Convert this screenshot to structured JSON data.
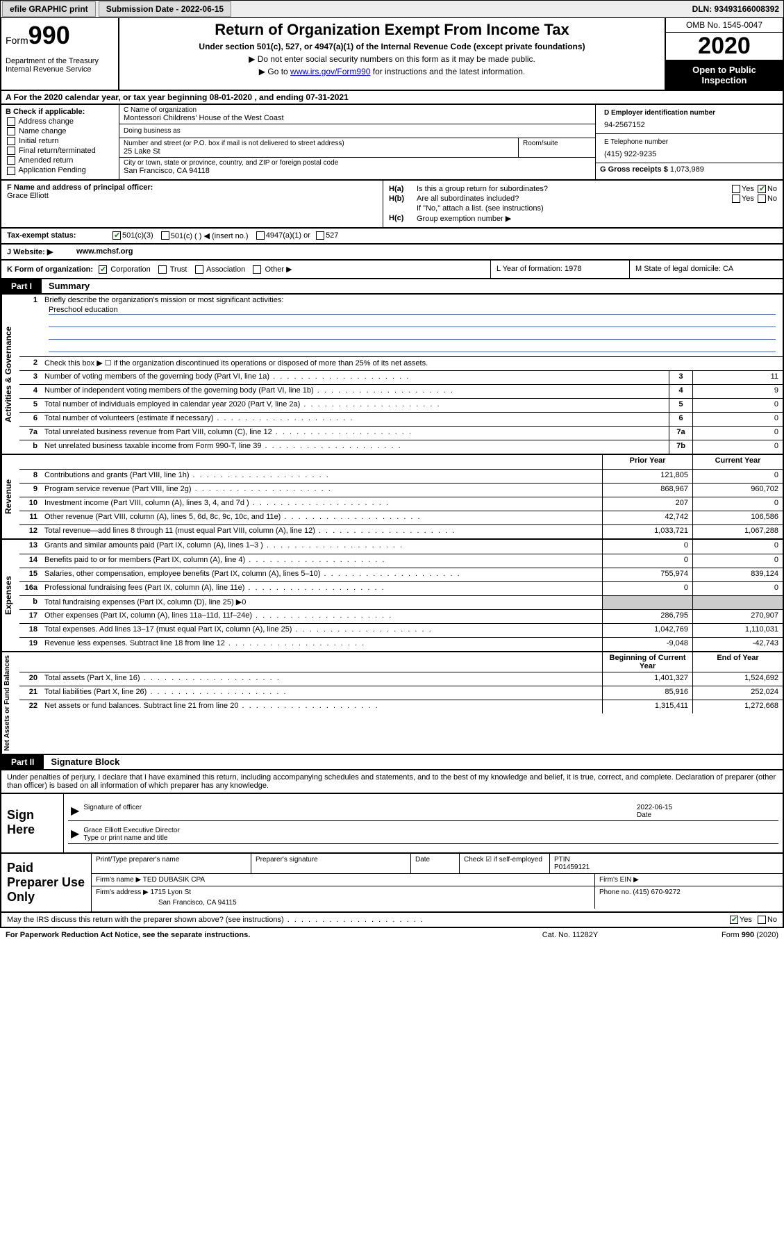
{
  "topbar": {
    "efile": "efile GRAPHIC print",
    "submission_label": "Submission Date - 2022-06-15",
    "dln": "DLN: 93493166008392"
  },
  "header": {
    "form_word": "Form",
    "form_num": "990",
    "dept": "Department of the Treasury",
    "irs": "Internal Revenue Service",
    "title": "Return of Organization Exempt From Income Tax",
    "subtitle": "Under section 501(c), 527, or 4947(a)(1) of the Internal Revenue Code (except private foundations)",
    "line1": "▶ Do not enter social security numbers on this form as it may be made public.",
    "line2_pre": "▶ Go to ",
    "line2_link": "www.irs.gov/Form990",
    "line2_post": " for instructions and the latest information.",
    "omb": "OMB No. 1545-0047",
    "year": "2020",
    "open": "Open to Public Inspection"
  },
  "rowA": "A   For the 2020 calendar year, or tax year beginning 08-01-2020   , and ending 07-31-2021",
  "B": {
    "hdr": "B Check if applicable:",
    "items": [
      "Address change",
      "Name change",
      "Initial return",
      "Final return/terminated",
      "Amended return",
      "Application Pending"
    ]
  },
  "C": {
    "name_lbl": "C Name of organization",
    "name": "Montessori Childrens' House of the West Coast",
    "dba_lbl": "Doing business as",
    "street_lbl": "Number and street (or P.O. box if mail is not delivered to street address)",
    "street": "25 Lake St",
    "room_lbl": "Room/suite",
    "city_lbl": "City or town, state or province, country, and ZIP or foreign postal code",
    "city": "San Francisco, CA  94118"
  },
  "D": {
    "ein_lbl": "D Employer identification number",
    "ein": "94-2567152",
    "phone_lbl": "E Telephone number",
    "phone": "(415) 922-9235",
    "gross_lbl": "G Gross receipts $ ",
    "gross": "1,073,989"
  },
  "F": {
    "lbl": "F  Name and address of principal officer:",
    "name": "Grace Elliott"
  },
  "H": {
    "a": "Is this a group return for subordinates?",
    "b": "Are all subordinates included?",
    "b_note": "If \"No,\" attach a list. (see instructions)",
    "c": "Group exemption number ▶"
  },
  "tax": {
    "lbl": "Tax-exempt status:",
    "opts": [
      "501(c)(3)",
      "501(c) (  ) ◀ (insert no.)",
      "4947(a)(1) or",
      "527"
    ]
  },
  "J": {
    "lbl": "J   Website: ▶",
    "val": "www.mchsf.org"
  },
  "K": {
    "lbl": "K Form of organization:",
    "opts": [
      "Corporation",
      "Trust",
      "Association",
      "Other ▶"
    ]
  },
  "L": "L Year of formation: 1978",
  "M": "M State of legal domicile: CA",
  "partI": {
    "tab": "Part I",
    "title": "Summary"
  },
  "summary": {
    "side1": "Activities & Governance",
    "side2": "Revenue",
    "side3": "Expenses",
    "side4": "Net Assets or Fund Balances",
    "q1": "Briefly describe the organization's mission or most significant activities:",
    "mission": "Preschool education",
    "q2": "Check this box ▶ ☐  if the organization discontinued its operations or disposed of more than 25% of its net assets.",
    "rows_gov": [
      {
        "n": "3",
        "t": "Number of voting members of the governing body (Part VI, line 1a)",
        "box": "3",
        "v": "11"
      },
      {
        "n": "4",
        "t": "Number of independent voting members of the governing body (Part VI, line 1b)",
        "box": "4",
        "v": "9"
      },
      {
        "n": "5",
        "t": "Total number of individuals employed in calendar year 2020 (Part V, line 2a)",
        "box": "5",
        "v": "0"
      },
      {
        "n": "6",
        "t": "Total number of volunteers (estimate if necessary)",
        "box": "6",
        "v": "0"
      },
      {
        "n": "7a",
        "t": "Total unrelated business revenue from Part VIII, column (C), line 12",
        "box": "7a",
        "v": "0"
      },
      {
        "n": "b",
        "t": "Net unrelated business taxable income from Form 990-T, line 39",
        "box": "7b",
        "v": "0"
      }
    ],
    "col_prior": "Prior Year",
    "col_curr": "Current Year",
    "rows_rev": [
      {
        "n": "8",
        "t": "Contributions and grants (Part VIII, line 1h)",
        "p": "121,805",
        "c": "0"
      },
      {
        "n": "9",
        "t": "Program service revenue (Part VIII, line 2g)",
        "p": "868,967",
        "c": "960,702"
      },
      {
        "n": "10",
        "t": "Investment income (Part VIII, column (A), lines 3, 4, and 7d )",
        "p": "207",
        "c": "0"
      },
      {
        "n": "11",
        "t": "Other revenue (Part VIII, column (A), lines 5, 6d, 8c, 9c, 10c, and 11e)",
        "p": "42,742",
        "c": "106,586"
      },
      {
        "n": "12",
        "t": "Total revenue—add lines 8 through 11 (must equal Part VIII, column (A), line 12)",
        "p": "1,033,721",
        "c": "1,067,288"
      }
    ],
    "rows_exp": [
      {
        "n": "13",
        "t": "Grants and similar amounts paid (Part IX, column (A), lines 1–3 )",
        "p": "0",
        "c": "0"
      },
      {
        "n": "14",
        "t": "Benefits paid to or for members (Part IX, column (A), line 4)",
        "p": "0",
        "c": "0"
      },
      {
        "n": "15",
        "t": "Salaries, other compensation, employee benefits (Part IX, column (A), lines 5–10)",
        "p": "755,974",
        "c": "839,124"
      },
      {
        "n": "16a",
        "t": "Professional fundraising fees (Part IX, column (A), line 11e)",
        "p": "0",
        "c": "0"
      },
      {
        "n": "b",
        "t": "Total fundraising expenses (Part IX, column (D), line 25) ▶0",
        "p": "",
        "c": "",
        "shade": true
      },
      {
        "n": "17",
        "t": "Other expenses (Part IX, column (A), lines 11a–11d, 11f–24e)",
        "p": "286,795",
        "c": "270,907"
      },
      {
        "n": "18",
        "t": "Total expenses. Add lines 13–17 (must equal Part IX, column (A), line 25)",
        "p": "1,042,769",
        "c": "1,110,031"
      },
      {
        "n": "19",
        "t": "Revenue less expenses. Subtract line 18 from line 12",
        "p": "-9,048",
        "c": "-42,743"
      }
    ],
    "col_begin": "Beginning of Current Year",
    "col_end": "End of Year",
    "rows_net": [
      {
        "n": "20",
        "t": "Total assets (Part X, line 16)",
        "p": "1,401,327",
        "c": "1,524,692"
      },
      {
        "n": "21",
        "t": "Total liabilities (Part X, line 26)",
        "p": "85,916",
        "c": "252,024"
      },
      {
        "n": "22",
        "t": "Net assets or fund balances. Subtract line 21 from line 20",
        "p": "1,315,411",
        "c": "1,272,668"
      }
    ]
  },
  "partII": {
    "tab": "Part II",
    "title": "Signature Block"
  },
  "perjury": "Under penalties of perjury, I declare that I have examined this return, including accompanying schedules and statements, and to the best of my knowledge and belief, it is true, correct, and complete. Declaration of preparer (other than officer) is based on all information of which preparer has any knowledge.",
  "sign": {
    "left": "Sign Here",
    "sig_lbl": "Signature of officer",
    "date_lbl": "Date",
    "date": "2022-06-15",
    "name": "Grace Elliott  Executive Director",
    "name_lbl": "Type or print name and title"
  },
  "paid": {
    "left": "Paid Preparer Use Only",
    "r1": [
      "Print/Type preparer's name",
      "Preparer's signature",
      "Date",
      "Check ☑ if self-employed",
      "PTIN\nP01459121"
    ],
    "r2_lbl": "Firm's name   ▶",
    "r2_val": "TED DUBASIK CPA",
    "r2_ein": "Firm's EIN ▶",
    "r3_lbl": "Firm's address ▶",
    "r3_val": "1715 Lyon St",
    "r3_city": "San Francisco, CA  94115",
    "r3_phone": "Phone no. (415) 670-9272"
  },
  "discuss": "May the IRS discuss this return with the preparer shown above? (see instructions)",
  "footer": {
    "l": "For Paperwork Reduction Act Notice, see the separate instructions.",
    "m": "Cat. No. 11282Y",
    "r": "Form 990 (2020)"
  }
}
